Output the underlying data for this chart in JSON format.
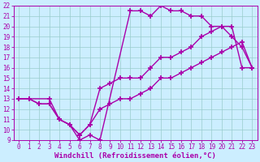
{
  "xlabel": "Windchill (Refroidissement éolien,°C)",
  "xlim": [
    -0.5,
    23.5
  ],
  "ylim": [
    9,
    22
  ],
  "xticks": [
    0,
    1,
    2,
    3,
    4,
    5,
    6,
    7,
    8,
    9,
    10,
    11,
    12,
    13,
    14,
    15,
    16,
    17,
    18,
    19,
    20,
    21,
    22,
    23
  ],
  "yticks": [
    9,
    10,
    11,
    12,
    13,
    14,
    15,
    16,
    17,
    18,
    19,
    20,
    21,
    22
  ],
  "bg_color": "#cceeff",
  "grid_color": "#99cccc",
  "line_color": "#aa00aa",
  "line1_x": [
    0,
    1,
    3,
    4,
    5,
    6,
    7,
    8,
    11,
    12,
    13,
    14,
    15,
    16,
    17,
    18,
    19,
    20,
    21,
    22,
    23
  ],
  "line1_y": [
    13,
    13,
    13,
    11,
    10.5,
    9,
    9.5,
    9,
    21.5,
    21.5,
    21,
    22,
    21.5,
    21.5,
    21,
    21,
    20,
    20,
    19,
    18,
    16
  ],
  "line2_x": [
    0,
    1,
    2,
    3,
    4,
    5,
    6,
    7,
    8,
    9,
    10,
    11,
    12,
    13,
    14,
    15,
    16,
    17,
    18,
    19,
    20,
    21,
    22,
    23
  ],
  "line2_y": [
    13,
    13,
    12.5,
    12.5,
    11,
    10.5,
    9.5,
    10.5,
    14,
    14.5,
    15,
    15,
    15,
    16,
    17,
    17,
    17.5,
    18,
    19,
    19.5,
    20,
    20,
    16,
    16
  ],
  "line3_x": [
    0,
    1,
    2,
    3,
    4,
    5,
    6,
    7,
    8,
    9,
    10,
    11,
    12,
    13,
    14,
    15,
    16,
    17,
    18,
    19,
    20,
    21,
    22,
    23
  ],
  "line3_y": [
    13,
    13,
    12.5,
    12.5,
    11,
    10.5,
    9.5,
    10.5,
    12,
    12.5,
    13,
    13,
    13.5,
    14,
    15,
    15,
    15.5,
    16,
    16.5,
    17,
    17.5,
    18,
    18.5,
    16
  ],
  "marker": "+",
  "markersize": 5,
  "linewidth": 1.0,
  "tick_fontsize": 5.5,
  "xlabel_fontsize": 6.5
}
